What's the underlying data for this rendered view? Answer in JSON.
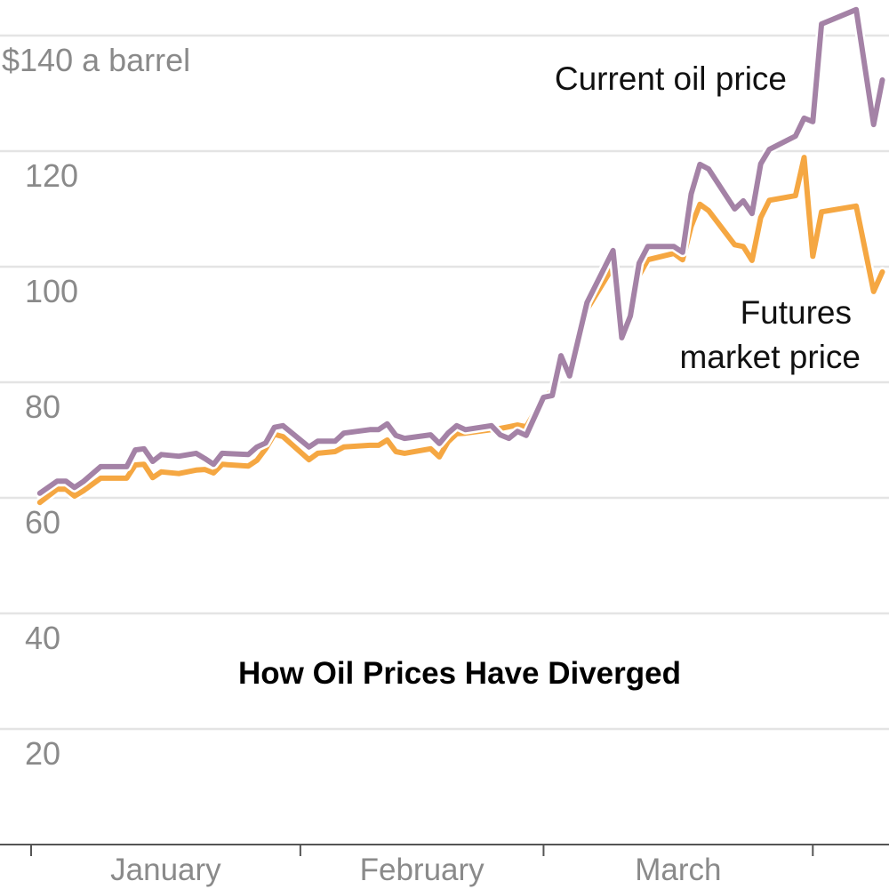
{
  "chart_data": {
    "type": "line",
    "title": "How Oil Prices Have Diverged",
    "ylabel_unit": "a barrel",
    "ylim": [
      0,
      140
    ],
    "yticks": [
      {
        "value": 140,
        "label": "$140 a barrel"
      },
      {
        "value": 120,
        "label": "120"
      },
      {
        "value": 100,
        "label": "100"
      },
      {
        "value": 80,
        "label": "80"
      },
      {
        "value": 60,
        "label": "60"
      },
      {
        "value": 40,
        "label": "40"
      },
      {
        "value": 20,
        "label": "20"
      }
    ],
    "xticks": [
      "Jan 1",
      "Feb 1",
      "Mar 1",
      "Apr 1"
    ],
    "xlabels": [
      "January",
      "February",
      "March"
    ],
    "grid": true,
    "x": [
      "Jan 2",
      "Jan 4",
      "Jan 5",
      "Jan 6",
      "Jan 7",
      "Jan 9",
      "Jan 12",
      "Jan 13",
      "Jan 14",
      "Jan 15",
      "Jan 16",
      "Jan 18",
      "Jan 20",
      "Jan 21",
      "Jan 22",
      "Jan 23",
      "Jan 26",
      "Jan 27",
      "Jan 28",
      "Jan 29",
      "Jan 30",
      "Feb 2",
      "Feb 3",
      "Feb 5",
      "Feb 6",
      "Feb 9",
      "Feb 10",
      "Feb 11",
      "Feb 12",
      "Feb 13",
      "Feb 16",
      "Feb 17",
      "Feb 18",
      "Feb 19",
      "Feb 20",
      "Feb 23",
      "Feb 24",
      "Feb 25",
      "Feb 26",
      "Feb 27",
      "Mar 1",
      "Mar 2",
      "Mar 3",
      "Mar 4",
      "Mar 6",
      "Mar 9",
      "Mar 10",
      "Mar 11",
      "Mar 12",
      "Mar 13",
      "Mar 16",
      "Mar 17",
      "Mar 18",
      "Mar 19",
      "Mar 20",
      "Mar 23",
      "Mar 24",
      "Mar 25",
      "Mar 26",
      "Mar 27",
      "Mar 30",
      "Mar 31",
      "Apr 1",
      "Apr 2",
      "Apr 6",
      "Apr 8",
      "Apr 9"
    ],
    "series": [
      {
        "name": "Futures market price",
        "label_lines": [
          "Futures",
          "market price"
        ],
        "color": "#f5a742",
        "values": [
          59.2,
          61.5,
          61.5,
          60.3,
          61.2,
          63.4,
          63.4,
          65.7,
          65.8,
          63.5,
          64.5,
          64.2,
          64.8,
          64.9,
          64.3,
          65.8,
          65.5,
          66.5,
          68.5,
          71.0,
          70.6,
          66.6,
          67.7,
          68.0,
          68.8,
          69.1,
          69.1,
          70.0,
          68.0,
          67.7,
          68.5,
          67.1,
          69.7,
          71.1,
          71.2,
          71.8,
          72.0,
          72.3,
          72.6,
          72.3,
          77.4,
          78.5,
          83.0,
          81.5,
          92.6,
          100.0,
          87.7,
          91.5,
          98.5,
          101.2,
          102.3,
          101.2,
          107.0,
          110.8,
          109.7,
          103.8,
          103.5,
          101.1,
          108.5,
          111.5,
          112.3,
          118.9,
          101.8,
          109.5,
          110.5,
          95.7,
          99.1
        ]
      },
      {
        "name": "Current oil price",
        "label_lines": [
          "Current oil price"
        ],
        "color": "#a482a6",
        "values": [
          60.8,
          62.9,
          62.9,
          61.8,
          62.8,
          65.4,
          65.4,
          68.3,
          68.5,
          66.3,
          67.5,
          67.2,
          67.7,
          66.8,
          65.8,
          67.7,
          67.5,
          68.8,
          69.5,
          72.2,
          72.5,
          68.8,
          69.8,
          69.8,
          71.2,
          71.8,
          71.8,
          72.8,
          70.8,
          70.3,
          70.9,
          69.4,
          71.2,
          72.5,
          71.8,
          72.5,
          70.9,
          70.3,
          71.5,
          70.8,
          77.4,
          77.7,
          84.6,
          81.1,
          93.8,
          102.8,
          87.7,
          91.5,
          100.6,
          103.5,
          103.5,
          102.5,
          112.6,
          117.7,
          116.9,
          110.0,
          111.4,
          109.2,
          117.8,
          120.3,
          122.6,
          125.7,
          125.1,
          142.0,
          144.5,
          124.6,
          132.3
        ]
      }
    ]
  }
}
